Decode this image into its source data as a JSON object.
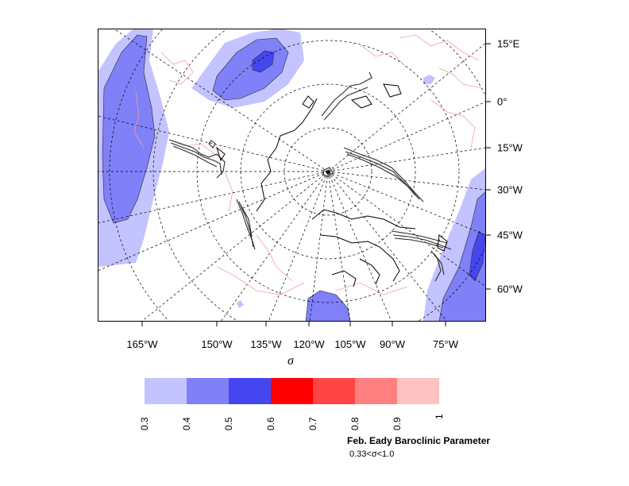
{
  "map": {
    "type": "polar stereographic contour/shaded map",
    "bottom_longitude_labels": [
      "165°W",
      "150°W",
      "135°W",
      "120°W",
      "105°W",
      "90°W",
      "75°W"
    ],
    "right_longitude_labels": [
      "15°E",
      "0°",
      "15°W",
      "30°W",
      "45°W",
      "60°W"
    ],
    "xlabel": "σ",
    "colors": {
      "shade_03_04": "#c3c3ff",
      "shade_04_05": "#8080f8",
      "shade_05_06": "#4646f0",
      "coastline": "#f4a0a0",
      "contour": "#2b2b2b",
      "graticule": "#000000"
    }
  },
  "colorbar": {
    "bins": [
      {
        "lo": 0.3,
        "hi": 0.4,
        "color": "#c3c3ff"
      },
      {
        "lo": 0.4,
        "hi": 0.5,
        "color": "#8080f8"
      },
      {
        "lo": 0.5,
        "hi": 0.6,
        "color": "#4646f0"
      },
      {
        "lo": 0.6,
        "hi": 0.7,
        "color": "#ff0000"
      },
      {
        "lo": 0.7,
        "hi": 0.8,
        "color": "#ff4545"
      },
      {
        "lo": 0.8,
        "hi": 0.9,
        "color": "#ff8080"
      },
      {
        "lo": 0.9,
        "hi": 1.0,
        "color": "#ffc2c2"
      }
    ],
    "tick_labels": [
      "0.3",
      "0.4",
      "0.5",
      "0.6",
      "0.7",
      "0.8",
      "0.9",
      "1"
    ]
  },
  "caption": {
    "title": "Feb. Eady Baroclinic Parameter",
    "subtitle": "0.33<σ<1.0"
  }
}
